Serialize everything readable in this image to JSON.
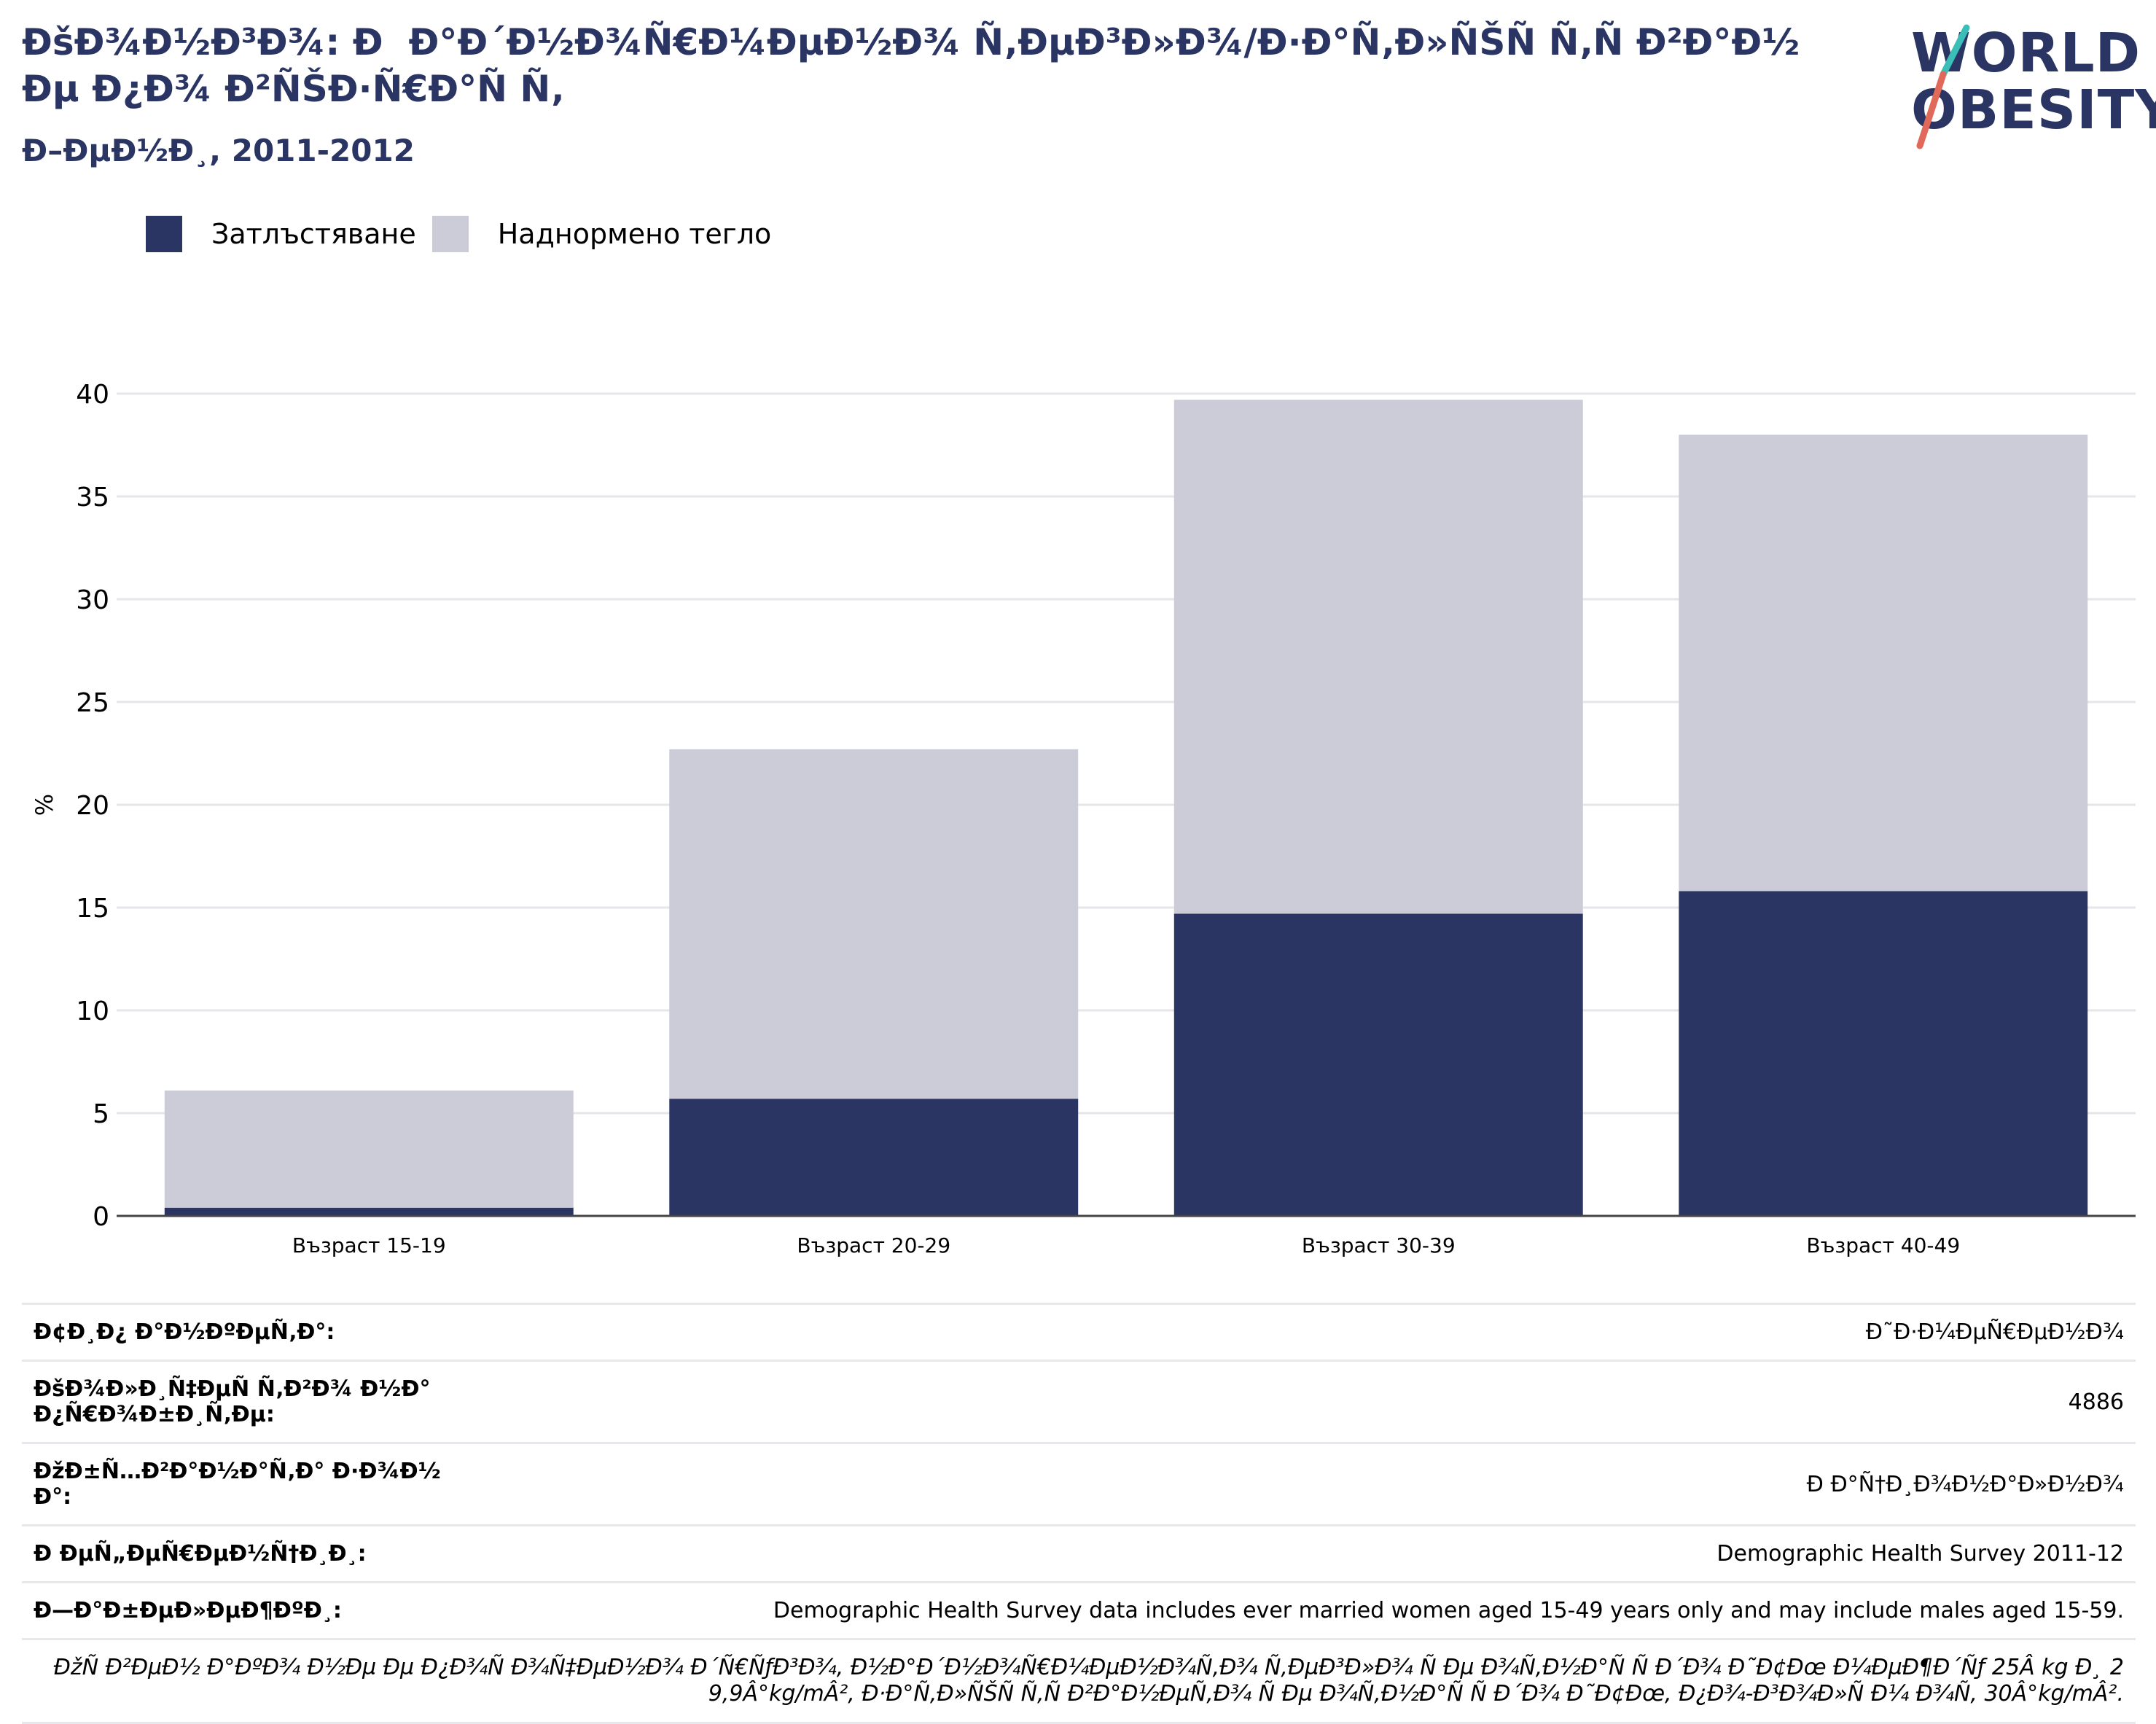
{
  "header": {
    "title": "ÐšÐ¾Ð½Ð³Ð¾: Ð  Ð°Ð´Ð½Ð¾Ñ€Ð¼ÐµÐ½Ð¾ Ñ‚ÐµÐ³Ð»Ð¾/Ð·Ð°Ñ‚Ð»ÑŠÑ Ñ‚Ñ Ð²Ð°Ð½Ðµ Ð¿Ð¾ Ð²ÑŠÐ·Ñ€Ð°Ñ Ñ‚",
    "subtitle": "Ð–ÐµÐ½Ð¸, 2011-2012"
  },
  "logo": {
    "line1": "WORLD",
    "line2": "OBESITY"
  },
  "legend": [
    {
      "label": "Затлъстяване",
      "color": "#2a3563"
    },
    {
      "label": "Наднормено тегло",
      "color": "#cbccd8"
    }
  ],
  "chart_data": {
    "type": "bar",
    "stacked": true,
    "categories": [
      "Възраст 15-19",
      "Възраст 20-29",
      "Възраст 30-39",
      "Възраст 40-49"
    ],
    "series": [
      {
        "name": "Затлъстяване",
        "color": "#2a3563",
        "values": [
          0.4,
          5.7,
          14.7,
          15.8
        ]
      },
      {
        "name": "Наднормено тегло",
        "color": "#cbccd8",
        "values": [
          5.7,
          17.0,
          25.0,
          22.2
        ]
      }
    ],
    "ylabel": "%",
    "ylim": [
      0,
      40
    ],
    "yticks": [
      0,
      5,
      10,
      15,
      20,
      25,
      30,
      35,
      40
    ],
    "grid": true
  },
  "info": {
    "rows": [
      {
        "label": "Ð¢Ð¸Ð¿ Ð°Ð½ÐºÐµÑ‚Ð°:",
        "value": "Ð˜Ð·Ð¼ÐµÑ€ÐµÐ½Ð¾"
      },
      {
        "label": "ÐšÐ¾Ð»Ð¸Ñ‡ÐµÑ Ñ‚Ð²Ð¾ Ð½Ð° Ð¿Ñ€Ð¾Ð±Ð¸Ñ‚Ðµ:",
        "value": "4886"
      },
      {
        "label": "ÐžÐ±Ñ…Ð²Ð°Ð½Ð°Ñ‚Ð° Ð·Ð¾Ð½Ð°:",
        "value": "Ð Ð°Ñ†Ð¸Ð¾Ð½Ð°Ð»Ð½Ð¾"
      },
      {
        "label": "Ð ÐµÑ„ÐµÑ€ÐµÐ½Ñ†Ð¸Ð¸:",
        "value": "Demographic Health Survey 2011-12"
      },
      {
        "label": "Ð—Ð°Ð±ÐµÐ»ÐµÐ¶ÐºÐ¸:",
        "value": "Demographic Health Survey data includes ever married women aged 15-49 years only and may include males aged 15-59."
      }
    ],
    "note": "ÐžÑ Ð²ÐµÐ½ Ð°ÐºÐ¾ Ð½Ðµ Ðµ Ð¿Ð¾Ñ Ð¾Ñ‡ÐµÐ½Ð¾ Ð´Ñ€ÑƒÐ³Ð¾, Ð½Ð°Ð´Ð½Ð¾Ñ€Ð¼ÐµÐ½Ð¾Ñ‚Ð¾ Ñ‚ÐµÐ³Ð»Ð¾ Ñ Ðµ Ð¾Ñ‚Ð½Ð°Ñ Ñ  Ð´Ð¾ Ð˜Ð¢Ðœ Ð¼ÐµÐ¶Ð´Ñƒ 25Â kg Ð¸ 29,9Â°kg/mÂ², Ð·Ð°Ñ‚Ð»ÑŠÑ Ñ‚Ñ Ð²Ð°Ð½ÐµÑ‚Ð¾ Ñ Ðµ Ð¾Ñ‚Ð½Ð°Ñ Ñ  Ð´Ð¾ Ð˜Ð¢Ðœ, Ð¿Ð¾-Ð³Ð¾Ð»Ñ Ð¼ Ð¾Ñ‚ 30Â°kg/mÂ²."
  }
}
